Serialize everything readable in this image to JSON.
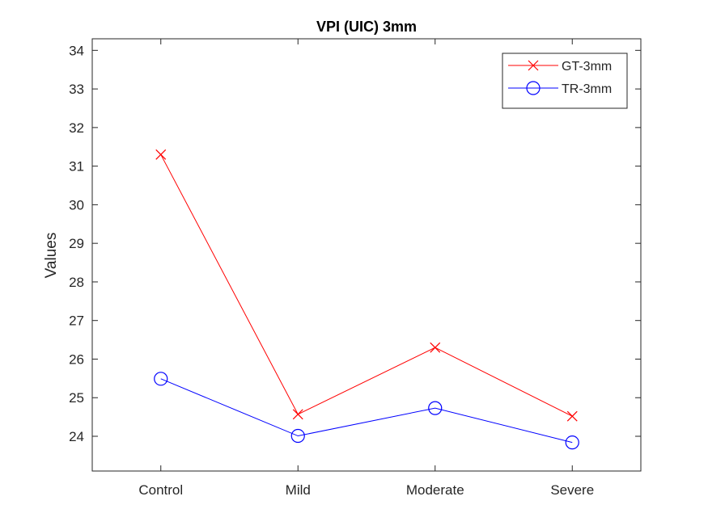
{
  "chart_data": {
    "type": "line",
    "title": "VPI (UIC) 3mm",
    "xlabel": "",
    "ylabel": "Values",
    "categories": [
      "Control",
      "Mild",
      "Moderate",
      "Severe"
    ],
    "ylim": [
      23.1,
      34.3
    ],
    "yticks": [
      24,
      25,
      26,
      27,
      28,
      29,
      30,
      31,
      32,
      33,
      34
    ],
    "grid": false,
    "legend_position": "top-right",
    "series": [
      {
        "name": "GT-3mm",
        "values": [
          31.3,
          24.57,
          26.3,
          24.52
        ],
        "color": "#ff0000",
        "marker": "x"
      },
      {
        "name": "TR-3mm",
        "values": [
          25.49,
          24.01,
          24.73,
          23.84
        ],
        "color": "#0000ff",
        "marker": "circle"
      }
    ]
  }
}
